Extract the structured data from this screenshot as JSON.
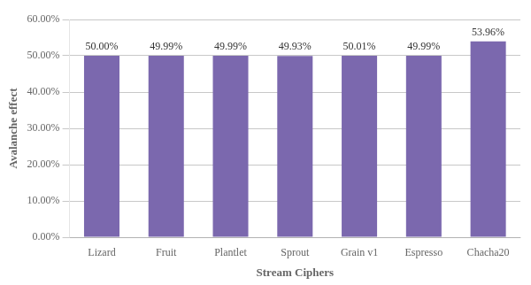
{
  "chart_data": {
    "type": "bar",
    "categories": [
      "Lizard",
      "Fruit",
      "Plantlet",
      "Sprout",
      "Grain v1",
      "Espresso",
      "Chacha20"
    ],
    "values": [
      50.0,
      49.99,
      49.99,
      49.93,
      50.01,
      49.99,
      53.96
    ],
    "value_labels": [
      "50.00%",
      "49.99%",
      "49.99%",
      "49.93%",
      "50.01%",
      "49.99%",
      "53.96%"
    ],
    "data_labels": true,
    "color": "#7B68AE",
    "xlabel": "Stream Ciphers",
    "ylabel": "Avalanche effect",
    "ylim": [
      0,
      60
    ],
    "yticks": [
      {
        "value": 0,
        "label": "0.00%"
      },
      {
        "value": 10,
        "label": "10.00%"
      },
      {
        "value": 20,
        "label": "20.00%"
      },
      {
        "value": 30,
        "label": "30.00%"
      },
      {
        "value": 40,
        "label": "40.00%"
      },
      {
        "value": 50,
        "label": "50.00%"
      },
      {
        "value": 60,
        "label": "60.00%"
      }
    ],
    "grid": true
  }
}
